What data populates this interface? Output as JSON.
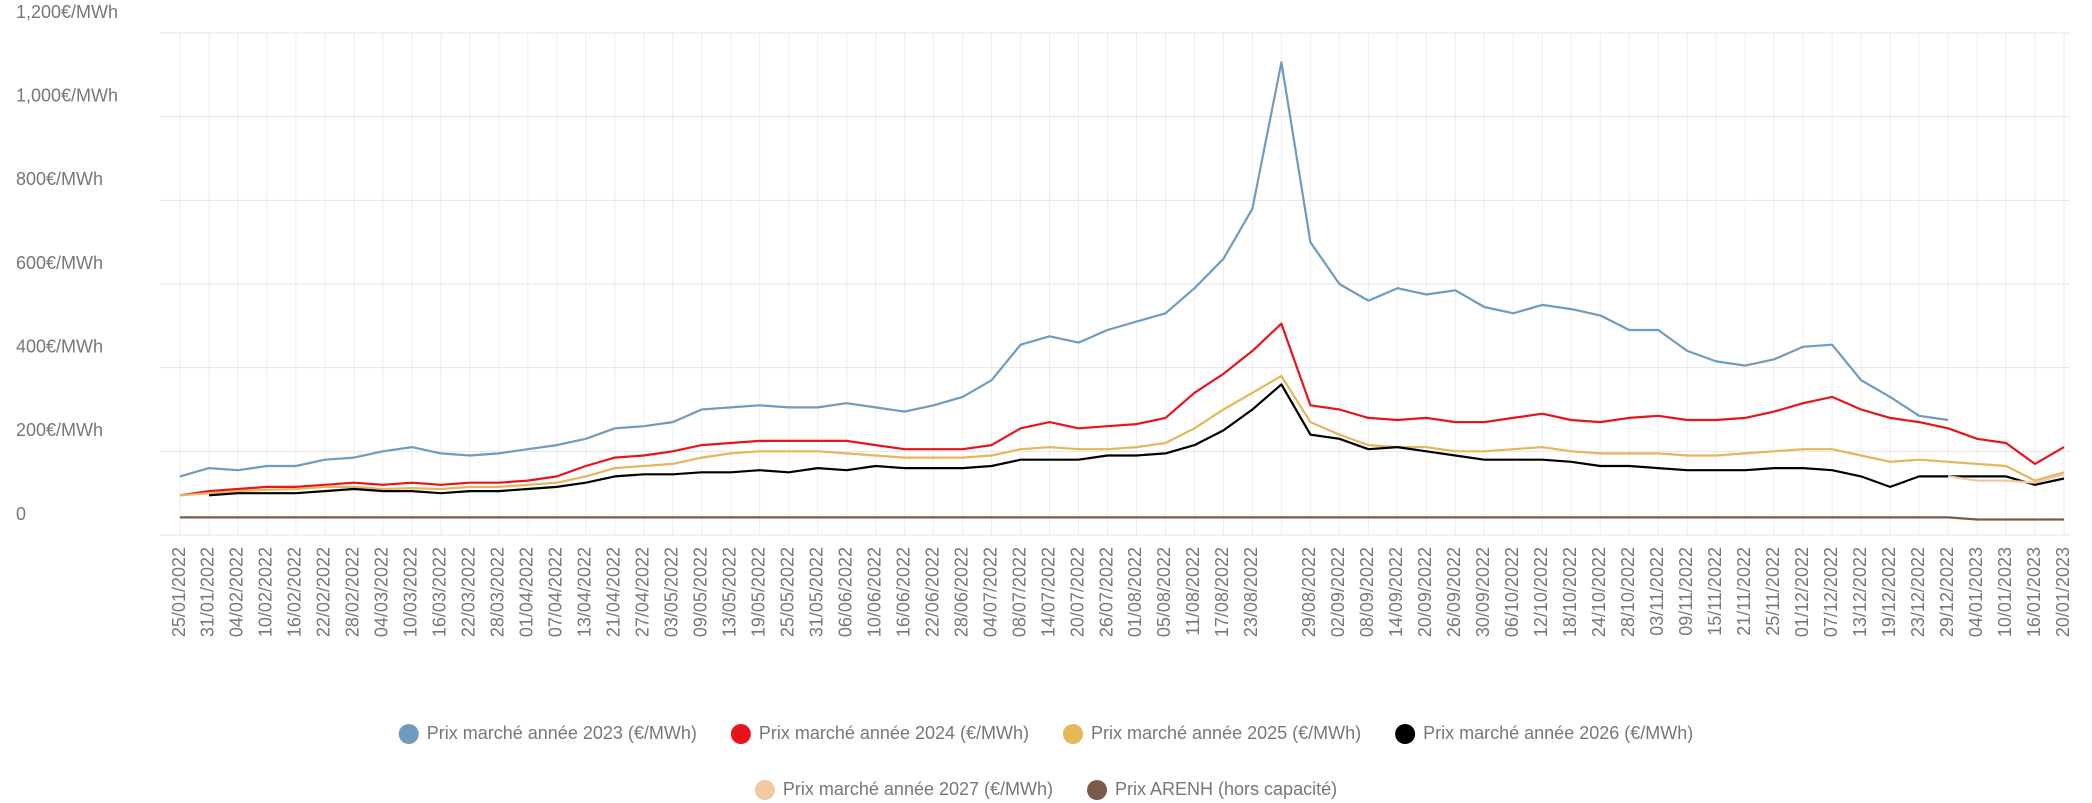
{
  "chart_data": {
    "type": "line",
    "categories": [
      "25/01/2022",
      "31/01/2022",
      "04/02/2022",
      "10/02/2022",
      "16/02/2022",
      "22/02/2022",
      "28/02/2022",
      "04/03/2022",
      "10/03/2022",
      "16/03/2022",
      "22/03/2022",
      "28/03/2022",
      "01/04/2022",
      "07/04/2022",
      "13/04/2022",
      "21/04/2022",
      "27/04/2022",
      "03/05/2022",
      "09/05/2022",
      "13/05/2022",
      "19/05/2022",
      "25/05/2022",
      "31/05/2022",
      "06/06/2022",
      "10/06/2022",
      "16/06/2022",
      "22/06/2022",
      "28/06/2022",
      "04/07/2022",
      "08/07/2022",
      "14/07/2022",
      "20/07/2022",
      "26/07/2022",
      "01/08/2022",
      "05/08/2022",
      "11/08/2022",
      "17/08/2022",
      "23/08/2022",
      null,
      "29/08/2022",
      "02/09/2022",
      "08/09/2022",
      "14/09/2022",
      "20/09/2022",
      "26/09/2022",
      "30/09/2022",
      "06/10/2022",
      "12/10/2022",
      "18/10/2022",
      "24/10/2022",
      "28/10/2022",
      "03/11/2022",
      "09/11/2022",
      "15/11/2022",
      "21/11/2022",
      "25/11/2022",
      "01/12/2022",
      "07/12/2022",
      "13/12/2022",
      "19/12/2022",
      "23/12/2022",
      "29/12/2022",
      "04/01/2023",
      "10/01/2023",
      "16/01/2023",
      "20/01/2023"
    ],
    "series": [
      {
        "name": "Prix marché année 2023 (€/MWh)",
        "color": "#6f9bbf",
        "values": [
          140,
          160,
          155,
          165,
          165,
          180,
          185,
          200,
          210,
          195,
          190,
          195,
          205,
          215,
          230,
          255,
          260,
          270,
          300,
          305,
          310,
          305,
          305,
          315,
          305,
          295,
          310,
          330,
          370,
          455,
          475,
          460,
          490,
          510,
          530,
          590,
          660,
          780,
          1130,
          700,
          600,
          560,
          590,
          575,
          585,
          545,
          530,
          550,
          540,
          525,
          490,
          490,
          440,
          415,
          405,
          420,
          450,
          455,
          370,
          330,
          285,
          275,
          null,
          null,
          null,
          null
        ]
      },
      {
        "name": "Prix marché année 2024 (€/MWh)",
        "color": "#e8141c",
        "values": [
          95,
          105,
          110,
          115,
          115,
          120,
          125,
          120,
          125,
          120,
          125,
          125,
          130,
          140,
          165,
          185,
          190,
          200,
          215,
          220,
          225,
          225,
          225,
          225,
          215,
          205,
          205,
          205,
          215,
          255,
          270,
          255,
          260,
          265,
          280,
          340,
          385,
          440,
          505,
          310,
          300,
          280,
          275,
          280,
          270,
          270,
          280,
          290,
          275,
          270,
          280,
          285,
          275,
          275,
          280,
          295,
          315,
          330,
          300,
          280,
          270,
          255,
          230,
          220,
          170,
          210
        ]
      },
      {
        "name": "Prix marché année 2025 (€/MWh)",
        "color": "#e3b75a",
        "values": [
          95,
          100,
          105,
          108,
          110,
          115,
          115,
          110,
          112,
          110,
          115,
          115,
          120,
          125,
          140,
          160,
          165,
          170,
          185,
          195,
          200,
          200,
          200,
          195,
          190,
          185,
          185,
          185,
          190,
          205,
          210,
          205,
          205,
          210,
          220,
          255,
          300,
          340,
          380,
          270,
          240,
          215,
          210,
          210,
          200,
          200,
          205,
          210,
          200,
          195,
          195,
          195,
          190,
          190,
          195,
          200,
          205,
          205,
          190,
          175,
          180,
          175,
          170,
          165,
          130,
          150
        ]
      },
      {
        "name": "Prix marché année 2026 (€/MWh)",
        "color": "#000000",
        "values": [
          null,
          95,
          100,
          100,
          100,
          105,
          110,
          105,
          105,
          100,
          105,
          105,
          110,
          115,
          125,
          140,
          145,
          145,
          150,
          150,
          155,
          150,
          160,
          155,
          165,
          160,
          160,
          160,
          165,
          180,
          180,
          180,
          190,
          190,
          195,
          215,
          250,
          300,
          360,
          240,
          230,
          205,
          210,
          200,
          190,
          180,
          180,
          180,
          175,
          165,
          165,
          160,
          155,
          155,
          155,
          160,
          160,
          155,
          140,
          115,
          140,
          140,
          140,
          140,
          120,
          135
        ]
      },
      {
        "name": "Prix marché année 2027 (€/MWh)",
        "color": "#f2c9a5",
        "values": [
          null,
          null,
          null,
          null,
          null,
          null,
          null,
          null,
          null,
          null,
          null,
          null,
          null,
          null,
          null,
          null,
          null,
          null,
          null,
          null,
          null,
          null,
          null,
          null,
          null,
          null,
          null,
          null,
          null,
          null,
          null,
          null,
          null,
          null,
          null,
          null,
          null,
          null,
          null,
          null,
          null,
          null,
          null,
          null,
          null,
          null,
          null,
          null,
          null,
          null,
          null,
          null,
          null,
          null,
          null,
          null,
          null,
          null,
          null,
          null,
          null,
          140,
          130,
          130,
          125,
          145
        ]
      },
      {
        "name": "Prix ARENH (hors capacité)",
        "color": "#7a5a4a",
        "values": [
          42,
          42,
          42,
          42,
          42,
          42,
          42,
          42,
          42,
          42,
          42,
          42,
          42,
          42,
          42,
          42,
          42,
          42,
          42,
          42,
          42,
          42,
          42,
          42,
          42,
          42,
          42,
          42,
          42,
          42,
          42,
          42,
          42,
          42,
          42,
          42,
          42,
          42,
          42,
          42,
          42,
          42,
          42,
          42,
          42,
          42,
          42,
          42,
          42,
          42,
          42,
          42,
          42,
          42,
          42,
          42,
          42,
          42,
          42,
          42,
          42,
          42,
          37,
          37,
          37,
          37
        ]
      }
    ],
    "ylim": [
      0,
      1200
    ],
    "yticks": [
      0,
      {
        "value": 200,
        "label": "200€/MWh"
      },
      {
        "value": 400,
        "label": "400€/MWh"
      },
      {
        "value": 600,
        "label": "600€/MWh"
      },
      {
        "value": 800,
        "label": "800€/MWh"
      },
      {
        "value": 1000,
        "label": "1,000€/MWh"
      },
      {
        "value": 1200,
        "label": "1,200€/MWh"
      }
    ],
    "grid": true
  }
}
